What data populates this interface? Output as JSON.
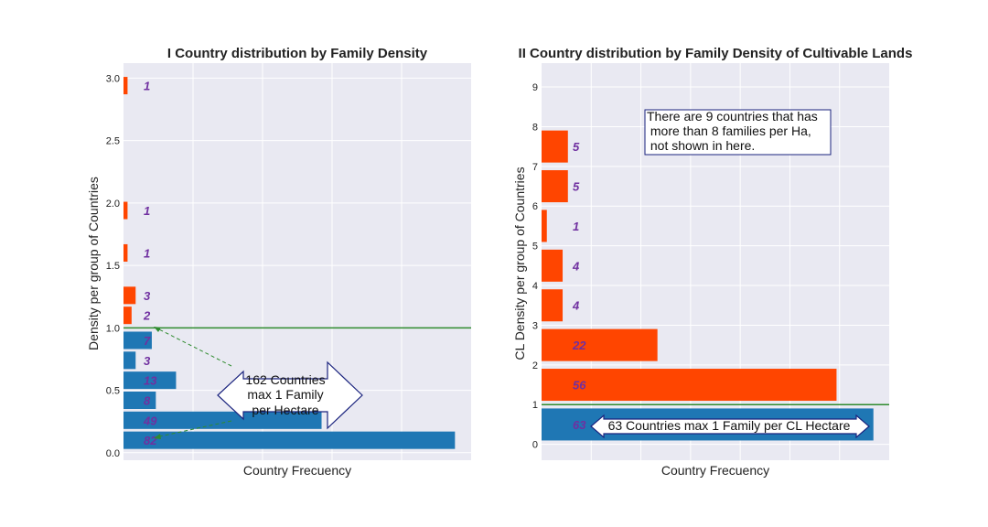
{
  "chart_data": [
    {
      "type": "bar",
      "orientation": "horizontal",
      "title": "I Country distribution by Family Density",
      "xlabel": "Country Frecuency",
      "ylabel": "Density per group of Countries",
      "ylim": [
        -0.06,
        3.12
      ],
      "xlim": [
        0,
        86
      ],
      "y_ticks": [
        "0.0",
        "0.5",
        "1.0",
        "1.5",
        "2.0",
        "2.5",
        "3.0"
      ],
      "y_tick_values": [
        0,
        0.5,
        1.0,
        1.5,
        2.0,
        2.5,
        3.0
      ],
      "threshold": 1.0,
      "grid": true,
      "bars": [
        {
          "y": 0.1,
          "value": 82,
          "label": "82",
          "color": "#1f77b4"
        },
        {
          "y": 0.26,
          "value": 49,
          "label": "49",
          "color": "#1f77b4"
        },
        {
          "y": 0.42,
          "value": 8,
          "label": "8",
          "color": "#1f77b4"
        },
        {
          "y": 0.58,
          "value": 13,
          "label": "13",
          "color": "#1f77b4"
        },
        {
          "y": 0.74,
          "value": 3,
          "label": "3",
          "color": "#1f77b4"
        },
        {
          "y": 0.9,
          "value": 7,
          "label": "7",
          "color": "#1f77b4"
        },
        {
          "y": 1.1,
          "value": 2,
          "label": "2",
          "color": "#ff4500"
        },
        {
          "y": 1.26,
          "value": 3,
          "label": "3",
          "color": "#ff4500"
        },
        {
          "y": 1.6,
          "value": 1,
          "label": "1",
          "color": "#ff4500"
        },
        {
          "y": 1.94,
          "value": 1,
          "label": "1",
          "color": "#ff4500"
        },
        {
          "y": 2.94,
          "value": 1,
          "label": "1",
          "color": "#ff4500"
        }
      ],
      "annotation": [
        "162 Countries",
        "max 1 Family",
        "per Hectare"
      ]
    },
    {
      "type": "bar",
      "orientation": "horizontal",
      "title": "II Country distribution by Family Density of Cultivable Lands",
      "xlabel": "Country Frecuency",
      "ylabel": "CL Density per group of Countries",
      "ylim": [
        -0.4,
        9.6
      ],
      "xlim": [
        0,
        66
      ],
      "y_ticks": [
        "0",
        "1",
        "2",
        "3",
        "4",
        "5",
        "6",
        "7",
        "8",
        "9"
      ],
      "y_tick_values": [
        0,
        1,
        2,
        3,
        4,
        5,
        6,
        7,
        8,
        9
      ],
      "threshold": 1.0,
      "grid": true,
      "bars": [
        {
          "y": 0.5,
          "value": 63,
          "label": "63",
          "color": "#1f77b4"
        },
        {
          "y": 1.5,
          "value": 56,
          "label": "56",
          "color": "#ff4500"
        },
        {
          "y": 2.5,
          "value": 22,
          "label": "22",
          "color": "#ff4500"
        },
        {
          "y": 3.5,
          "value": 4,
          "label": "4",
          "color": "#ff4500"
        },
        {
          "y": 4.5,
          "value": 4,
          "label": "4",
          "color": "#ff4500"
        },
        {
          "y": 5.5,
          "value": 1,
          "label": "1",
          "color": "#ff4500"
        },
        {
          "y": 6.5,
          "value": 5,
          "label": "5",
          "color": "#ff4500"
        },
        {
          "y": 7.5,
          "value": 5,
          "label": "5",
          "color": "#ff4500"
        }
      ],
      "annotation": "63 Countries max 1 Family per CL Hectare",
      "note": [
        "There are 9 countries that has",
        " more than 8 families per Ha,",
        " not shown in here."
      ]
    }
  ]
}
